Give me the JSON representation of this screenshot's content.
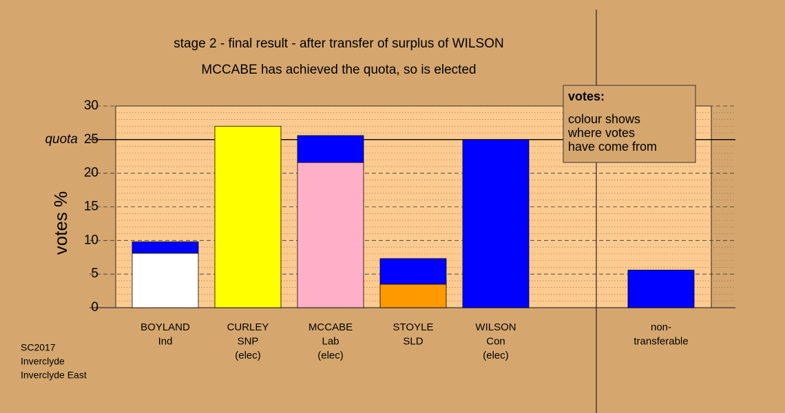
{
  "chart_data": {
    "type": "stacked_bar",
    "title": "stage 2 - final result - after transfer of surplus of WILSON",
    "subtitle": "MCCABE has achieved the quota, so is elected",
    "y_label": "votes %",
    "categories": [
      [
        "BOYLAND",
        "Ind"
      ],
      [
        "CURLEY",
        "SNP",
        "(elec)"
      ],
      [
        "MCCABE",
        "Lab",
        "(elec)"
      ],
      [
        "STOYLE",
        "SLD"
      ],
      [
        "WILSON",
        "Con",
        "(elec)"
      ],
      [
        "non-",
        "transferable"
      ]
    ],
    "series": [
      {
        "colors": [
          "#ffffff",
          "#ffff00",
          "#ffb0c8",
          "#ff9900",
          "#0000ff",
          null
        ],
        "values": [
          8.1,
          27.0,
          21.6,
          3.5,
          25.0,
          null
        ]
      },
      {
        "color": "#0000ff",
        "values": [
          1.7,
          null,
          4.0,
          3.8,
          null,
          5.6
        ]
      }
    ],
    "ylim": [
      0,
      30
    ],
    "yticks": [
      0,
      5,
      10,
      15,
      20,
      25,
      30
    ],
    "grid": true,
    "quota": {
      "value": 25,
      "label": "quota"
    },
    "legend": {
      "title": "votes:",
      "lines": [
        "colour shows",
        "where votes",
        "have come from"
      ]
    },
    "footnote": [
      "SC2017",
      "Inverclyde",
      "Inverclyde East"
    ]
  }
}
